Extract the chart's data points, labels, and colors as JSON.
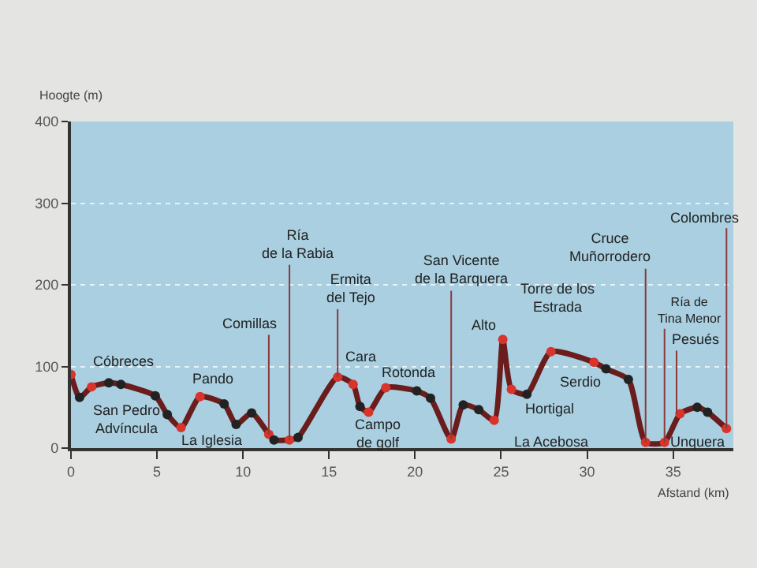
{
  "chart_data": {
    "type": "line",
    "xlabel": "Afstand (km)",
    "ylabel": "Hoogte (m)",
    "x": [
      0,
      0.5,
      1.2,
      2.2,
      2.9,
      4.9,
      5.6,
      6.4,
      7.5,
      8.9,
      9.6,
      10.5,
      11.5,
      11.8,
      12.7,
      13.2,
      15.5,
      16.4,
      16.8,
      17.3,
      18.3,
      20.1,
      20.9,
      22.1,
      22.8,
      23.7,
      24.6,
      25.1,
      25.6,
      26.5,
      27.9,
      30.4,
      31.1,
      32.4,
      33.4,
      34.5,
      35.4,
      36.4,
      37.0,
      38.1
    ],
    "series": [
      {
        "color": "#6b1d1d",
        "values": [
          90,
          62,
          75,
          80,
          78,
          64,
          41,
          25,
          63,
          54,
          29,
          43,
          17,
          10,
          10,
          13,
          87,
          78,
          51,
          44,
          74,
          70,
          61,
          11,
          53,
          47,
          34,
          133,
          72,
          66,
          118,
          105,
          97,
          84,
          7,
          7,
          42,
          50,
          44,
          24
        ],
        "colors": [
          "#d9342b",
          "#222222",
          "#d9342b",
          "#222222",
          "#222222",
          "#222222",
          "#222222",
          "#d9342b",
          "#d9342b",
          "#222222",
          "#222222",
          "#222222",
          "#d9342b",
          "#222222",
          "#d9342b",
          "#222222",
          "#d9342b",
          "#d9342b",
          "#222222",
          "#d9342b",
          "#d9342b",
          "#222222",
          "#222222",
          "#d9342b",
          "#222222",
          "#222222",
          "#d9342b",
          "#d9342b",
          "#d9342b",
          "#222222",
          "#d9342b",
          "#d9342b",
          "#222222",
          "#222222",
          "#d9342b",
          "#d9342b",
          "#d9342b",
          "#222222",
          "#222222",
          "#d9342b"
        ]
      }
    ],
    "xlim": [
      0,
      38.5
    ],
    "ylim": [
      0,
      400
    ],
    "xticks": [
      0,
      5,
      10,
      15,
      20,
      25,
      30,
      35
    ],
    "yticks": [
      0,
      100,
      200,
      300,
      400
    ],
    "grid": "y",
    "marker": "circle",
    "line_style": "solid",
    "annotations": [
      {
        "text": "Cóbreces",
        "x": 0,
        "y": 90
      },
      {
        "text": "San Pedro\nAdvíncula",
        "x": 0.5,
        "y": 62
      },
      {
        "text": "Pando",
        "x": 7.5,
        "y": 63
      },
      {
        "text": "La Iglesia",
        "x": 6.4,
        "y": 25
      },
      {
        "text": "Comillas",
        "x": 11.5,
        "y": 17
      },
      {
        "text": "Ría\nde la Rabia",
        "x": 12.7,
        "y": 10
      },
      {
        "text": "Ermita\ndel Tejo",
        "x": 15.5,
        "y": 87
      },
      {
        "text": "Cara",
        "x": 16.4,
        "y": 78
      },
      {
        "text": "Campo\nde golf",
        "x": 17.3,
        "y": 44
      },
      {
        "text": "Rotonda",
        "x": 18.3,
        "y": 74
      },
      {
        "text": "San Vicente\nde la Barquera",
        "x": 22.1,
        "y": 11
      },
      {
        "text": "Alto",
        "x": 25.1,
        "y": 133
      },
      {
        "text": "Torre de los\nEstrada",
        "x": 27.9,
        "y": 118
      },
      {
        "text": "Hortigal",
        "x": 26.5,
        "y": 66
      },
      {
        "text": "La Acebosa",
        "x": 24.6,
        "y": 34
      },
      {
        "text": "Serdio",
        "x": 31.1,
        "y": 97
      },
      {
        "text": "Cruce\nMuñorrodero",
        "x": 33.4,
        "y": 7
      },
      {
        "text": "Ría de\nTina Menor",
        "x": 34.5,
        "y": 7
      },
      {
        "text": "Pesués",
        "x": 35.2,
        "y": 42
      },
      {
        "text": "Colombres",
        "x": 38.1,
        "y": 24
      },
      {
        "text": "Unquera",
        "x": 36.4,
        "y": 50
      }
    ]
  }
}
